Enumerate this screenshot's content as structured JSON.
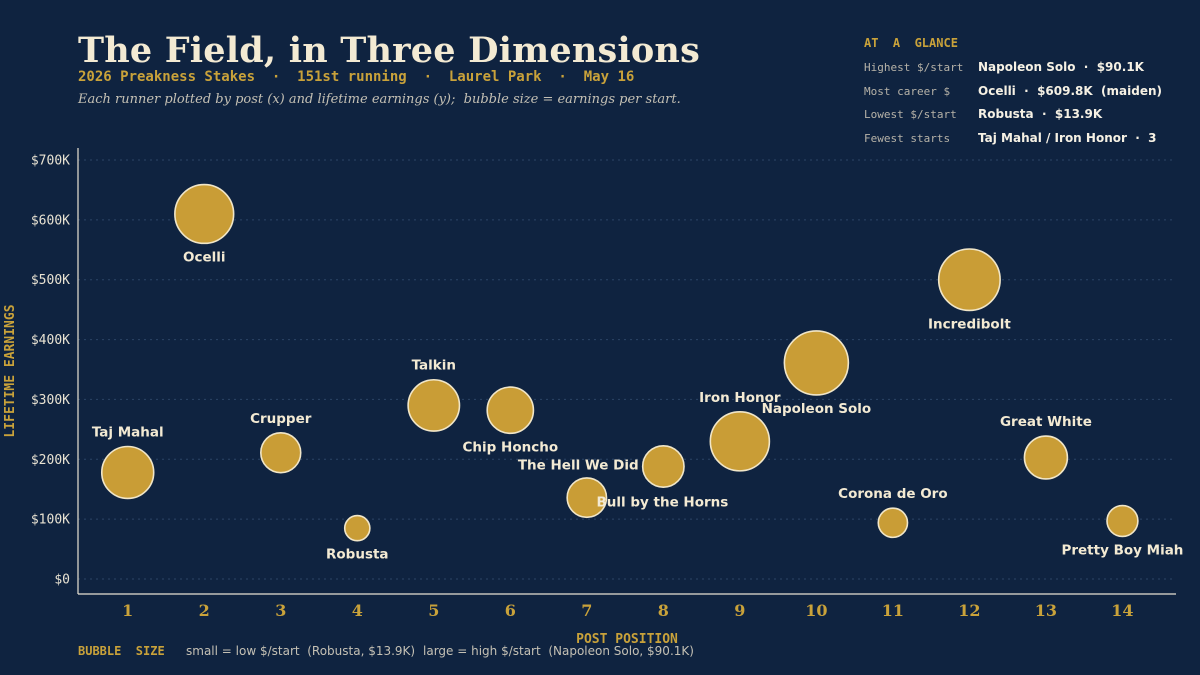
{
  "header": {
    "title": "The Field, in Three Dimensions",
    "subtitle": "2026 Preakness Stakes  ·  151st running  ·  Laurel Park  ·  May 16",
    "description": "Each runner plotted by post (x) and lifetime earnings (y);  bubble size = earnings per start."
  },
  "glance": {
    "heading": "AT  A  GLANCE",
    "rows": [
      {
        "key": "Highest $/start",
        "value": "Napoleon Solo  ·  $90.1K"
      },
      {
        "key": "Most career $",
        "value": "Ocelli  ·  $609.8K  (maiden)"
      },
      {
        "key": "Lowest $/start",
        "value": "Robusta  ·  $13.9K"
      },
      {
        "key": "Fewest starts",
        "value": "Taj Mahal / Iron Honor  ·  3"
      }
    ]
  },
  "legend": {
    "heading": "BUBBLE  SIZE",
    "small": "small = low $/start  (Robusta, $13.9K)",
    "large": "large = high $/start  (Napoleon Solo, $90.1K)"
  },
  "colors": {
    "background": "#0f2340",
    "accent": "#c9a23a",
    "bubble": "#c99d36",
    "text": "#f3ead3"
  },
  "chart_data": {
    "type": "scatter",
    "xlabel": "POST  POSITION",
    "ylabel": "LIFETIME  EARNINGS",
    "xlim": [
      0.35,
      14.7
    ],
    "ylim": [
      -25000,
      720000
    ],
    "x_ticks": [
      1,
      2,
      3,
      4,
      5,
      6,
      7,
      8,
      9,
      10,
      11,
      12,
      13,
      14
    ],
    "y_ticks": [
      0,
      100000,
      200000,
      300000,
      400000,
      500000,
      600000,
      700000
    ],
    "y_tick_labels": [
      "$0",
      "$100K",
      "$200K",
      "$300K",
      "$400K",
      "$500K",
      "$600K",
      "$700K"
    ],
    "grid": "horizontal dotted",
    "size_encoding": "earnings per start",
    "points": [
      {
        "name": "Taj Mahal",
        "x": 1,
        "y": 178000,
        "per_start": 59300,
        "label_pos": "above"
      },
      {
        "name": "Ocelli",
        "x": 2,
        "y": 609800,
        "per_start": 76000,
        "label_pos": "below"
      },
      {
        "name": "Crupper",
        "x": 3,
        "y": 211000,
        "per_start": 35000,
        "label_pos": "above"
      },
      {
        "name": "Robusta",
        "x": 4,
        "y": 85000,
        "per_start": 13900,
        "label_pos": "below"
      },
      {
        "name": "Talkin",
        "x": 5,
        "y": 290000,
        "per_start": 58000,
        "label_pos": "above"
      },
      {
        "name": "Chip Honcho",
        "x": 6,
        "y": 282000,
        "per_start": 47000,
        "label_pos": "below"
      },
      {
        "name": "Bull by the Horns",
        "x": 7,
        "y": 136000,
        "per_start": 34000,
        "label_pos": "below-right"
      },
      {
        "name": "The Hell We Did",
        "x": 8,
        "y": 188000,
        "per_start": 37600,
        "label_pos": "left"
      },
      {
        "name": "Iron Honor",
        "x": 9,
        "y": 230000,
        "per_start": 76700,
        "label_pos": "above"
      },
      {
        "name": "Napoleon Solo",
        "x": 10,
        "y": 361000,
        "per_start": 90100,
        "label_pos": "below"
      },
      {
        "name": "Corona de Oro",
        "x": 11,
        "y": 94000,
        "per_start": 18800,
        "label_pos": "above"
      },
      {
        "name": "Incredibolt",
        "x": 12,
        "y": 500000,
        "per_start": 83000,
        "label_pos": "below"
      },
      {
        "name": "Great White",
        "x": 13,
        "y": 203000,
        "per_start": 40600,
        "label_pos": "above"
      },
      {
        "name": "Pretty Boy Miah",
        "x": 14,
        "y": 97000,
        "per_start": 21000,
        "label_pos": "below"
      }
    ]
  }
}
